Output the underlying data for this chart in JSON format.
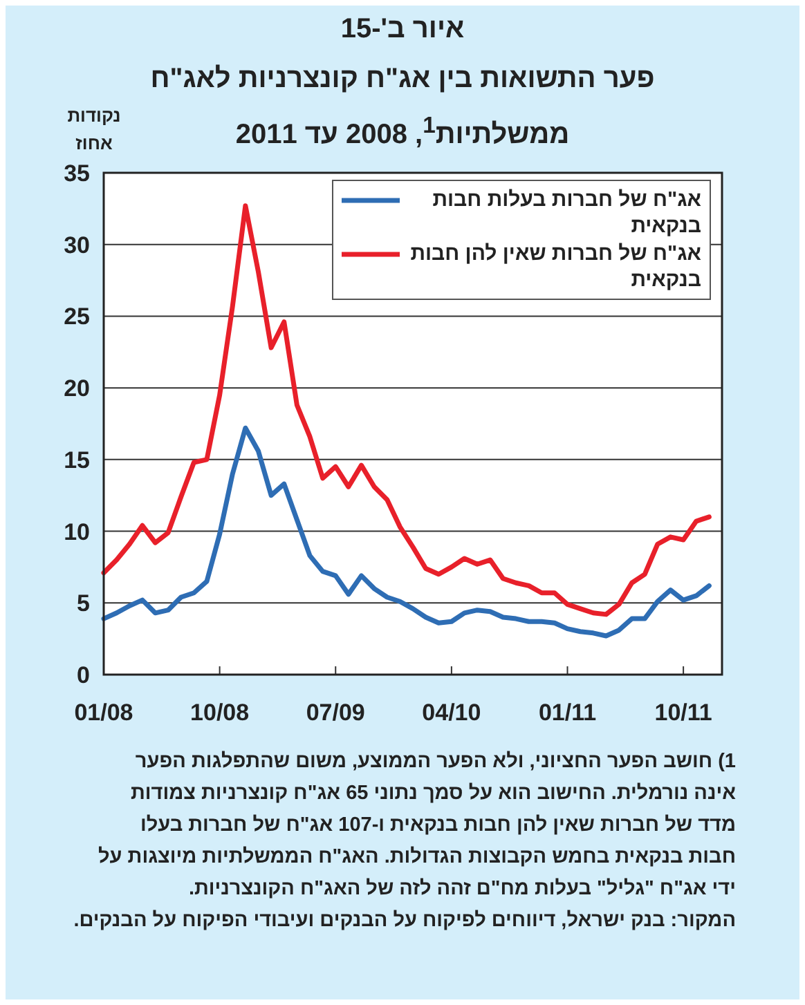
{
  "chart_data": {
    "type": "line",
    "title": "איור ב'-15",
    "subtitle": "פער התשואות בין אג\"ח קונצרניות לאג\"ח ממשלתיות$^{1}$, 2008 עד 2011",
    "ylabel": "נקודות אחוז",
    "x": [
      "2008-01",
      "2008-02",
      "2008-03",
      "2008-04",
      "2008-05",
      "2008-06",
      "2008-07",
      "2008-08",
      "2008-09",
      "2008-10",
      "2008-11",
      "2008-12",
      "2009-01",
      "2009-02",
      "2009-03",
      "2009-04",
      "2009-05",
      "2009-06",
      "2009-07",
      "2009-08",
      "2009-09",
      "2009-10",
      "2009-11",
      "2009-12",
      "2010-01",
      "2010-02",
      "2010-03",
      "2010-04",
      "2010-05",
      "2010-06",
      "2010-07",
      "2010-08",
      "2010-09",
      "2010-10",
      "2010-11",
      "2010-12",
      "2011-01",
      "2011-02",
      "2011-03",
      "2011-04",
      "2011-05",
      "2011-06",
      "2011-07",
      "2011-08",
      "2011-09",
      "2011-10",
      "2011-11",
      "2011-12"
    ],
    "series": [
      {
        "name": "אג\"ח של חברות בעלות חבות בנקאית",
        "color": "#2e6db4",
        "values": [
          3.9,
          4.3,
          4.8,
          5.2,
          4.3,
          4.5,
          5.4,
          5.7,
          6.5,
          9.8,
          14.0,
          17.2,
          15.6,
          12.5,
          13.3,
          10.8,
          8.3,
          7.2,
          6.9,
          5.6,
          6.9,
          6.0,
          5.4,
          5.1,
          4.6,
          4.0,
          3.6,
          3.7,
          4.3,
          4.5,
          4.4,
          4.0,
          3.9,
          3.7,
          3.7,
          3.6,
          3.2,
          3.0,
          2.9,
          2.7,
          3.1,
          3.9,
          3.9,
          5.1,
          5.9,
          5.2,
          5.5,
          6.2
        ]
      },
      {
        "name": "אג\"ח של חברות שאין להן חבות בנקאית",
        "color": "#e8202a",
        "values": [
          7.1,
          8.0,
          9.1,
          10.4,
          9.2,
          9.9,
          12.4,
          14.8,
          15.0,
          19.5,
          25.7,
          32.7,
          28.1,
          22.8,
          24.6,
          18.8,
          16.6,
          13.7,
          14.5,
          13.1,
          14.6,
          13.1,
          12.2,
          10.3,
          8.9,
          7.4,
          7.0,
          7.5,
          8.1,
          7.7,
          8.0,
          6.7,
          6.4,
          6.2,
          5.7,
          5.7,
          4.9,
          4.6,
          4.3,
          4.2,
          4.9,
          6.4,
          7.0,
          9.1,
          9.6,
          9.4,
          10.7,
          11.0
        ]
      }
    ],
    "xlim": [
      "2008-01",
      "2012-01"
    ],
    "xticks": [
      {
        "value": "2008-01",
        "label": "01/08"
      },
      {
        "value": "2008-10",
        "label": "10/08"
      },
      {
        "value": "2009-07",
        "label": "07/09"
      },
      {
        "value": "2010-04",
        "label": "04/10"
      },
      {
        "value": "2011-01",
        "label": "01/11"
      },
      {
        "value": "2011-10",
        "label": "10/11"
      }
    ],
    "ylim": [
      0,
      35
    ],
    "yticks": [
      0,
      5,
      10,
      15,
      20,
      25,
      30,
      35
    ],
    "grid": "y",
    "legend": "top right",
    "marker": "none",
    "line_style": "solid",
    "annotations": [
      "1) חושב הפער החציוני, ולא הפער הממוצע, משום שהתפלגות הפער אינה נורמלית. החישוב הוא על סמך נתוני 65 אג\"ח קונצרניות צמודות מדד של חברות שאין להן חבות בנקאית ו-107 אג\"ח של חברות בעלו חבות בנקאית בחמש הקבוצות הגדולות. האג\"ח הממשלתיות מיוצגות על ידי אג\"ח \"גליל\" בעלות מח\"ם זהה לזה של האג\"ח הקונצרניות.",
      "המקור: בנק ישראל, דיווחים לפיקוח על הבנקים ועיבודי הפיקוח על הבנקים."
    ]
  }
}
